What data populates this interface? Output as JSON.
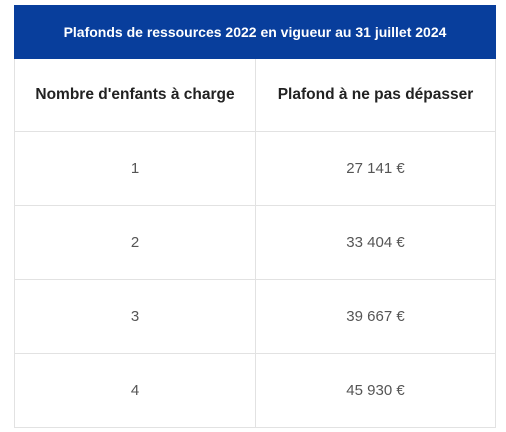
{
  "table": {
    "title": "Plafonds de ressources 2022 en vigueur au 31 juillet 2024",
    "headers": [
      "Nombre d'enfants à charge",
      "Plafond à ne pas dépasser"
    ],
    "rows": [
      [
        "1",
        "27 141 €"
      ],
      [
        "2",
        "33 404 €"
      ],
      [
        "3",
        "39 667 €"
      ],
      [
        "4",
        "45 930 €"
      ]
    ]
  },
  "colors": {
    "header_bg": "#083e9c",
    "header_text": "#ffffff",
    "border": "#e2e2e2"
  }
}
